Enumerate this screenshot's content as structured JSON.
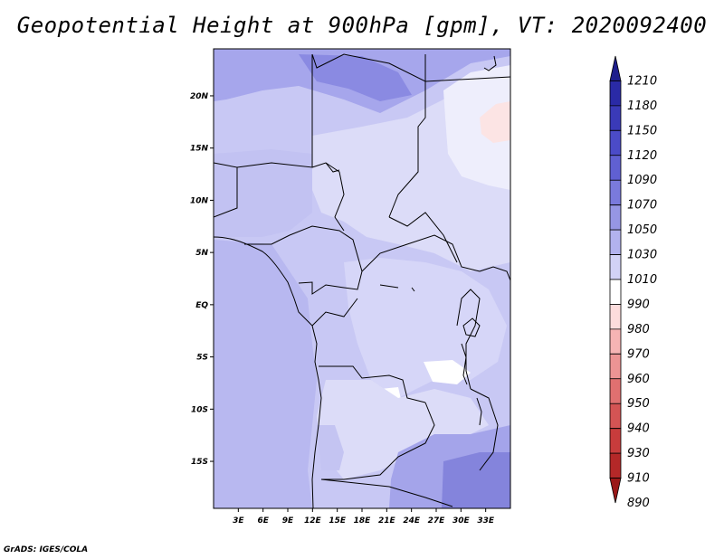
{
  "title": "Geopotential Height at 900hPa [gpm], VT: 2020092400",
  "credit": "GrADS: IGES/COLA",
  "map": {
    "variable": "Geopotential Height",
    "level": "900hPa",
    "units": "gpm",
    "valid_time": "2020092400",
    "lon_range": [
      0,
      36
    ],
    "lat_range": [
      -19.5,
      24.5
    ],
    "lon_ticks": [
      "3E",
      "6E",
      "9E",
      "12E",
      "15E",
      "18E",
      "21E",
      "24E",
      "27E",
      "30E",
      "33E"
    ],
    "lat_ticks": [
      "20N",
      "15N",
      "10N",
      "5N",
      "EQ",
      "5S",
      "10S",
      "15S"
    ]
  },
  "legend": {
    "levels": [
      "1210",
      "1180",
      "1150",
      "1120",
      "1090",
      "1070",
      "1050",
      "1030",
      "1010",
      "990",
      "980",
      "970",
      "960",
      "950",
      "940",
      "930",
      "910",
      "890"
    ],
    "colors": [
      "#1e1e8c",
      "#2a2aa6",
      "#3a3ab8",
      "#4b4bc8",
      "#6060d2",
      "#7a7adc",
      "#9696e4",
      "#b2b2ee",
      "#d2d2f6",
      "#ffffff",
      "#fcdcdc",
      "#f6b4b4",
      "#ec9494",
      "#e07070",
      "#d45454",
      "#c83c3c",
      "#b42828",
      "#9a1818"
    ]
  }
}
